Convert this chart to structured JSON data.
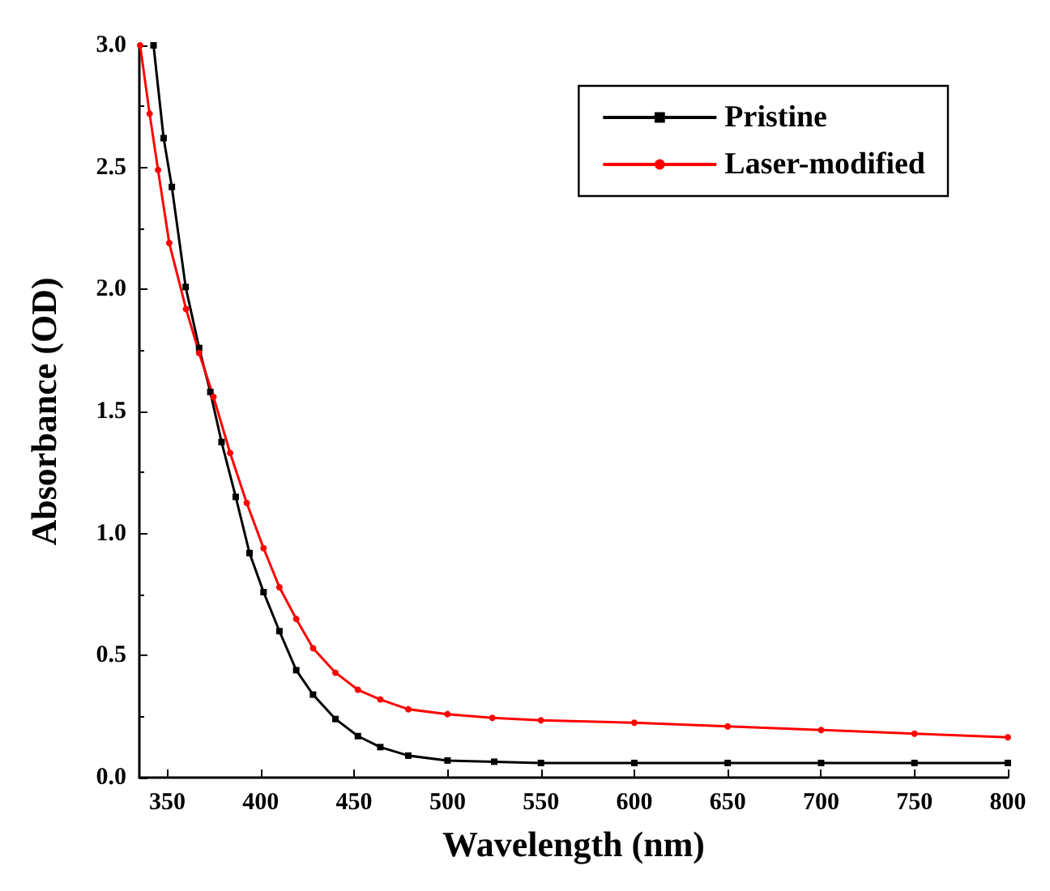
{
  "chart_data": {
    "type": "line",
    "xlabel": "Wavelength (nm)",
    "ylabel": "Absorbance (OD)",
    "xlim": [
      335,
      800
    ],
    "xticks": [
      350,
      400,
      450,
      500,
      550,
      600,
      650,
      700,
      750,
      800
    ],
    "ylim": [
      0,
      3
    ],
    "yticks": [
      {
        "value": 0,
        "label": "0.0"
      },
      0.5,
      {
        "value": 1,
        "label": "1.0"
      },
      1.5,
      {
        "value": 2,
        "label": "2.0"
      },
      2.5,
      {
        "value": 3,
        "label": "3.0"
      }
    ],
    "grid": false,
    "legend": "top right",
    "line_style": "solid",
    "series": [
      {
        "name": "Pristine",
        "color": "#000000",
        "marker": "square",
        "x": [
          342.6,
          348,
          352.4,
          359.8,
          367,
          373,
          379,
          386.6,
          394,
          401.5,
          410,
          419,
          428,
          440,
          452,
          464,
          479,
          500,
          525,
          550,
          600,
          650,
          700,
          750,
          800
        ],
        "values": [
          3.0,
          2.62,
          2.42,
          2.01,
          1.76,
          1.58,
          1.375,
          1.15,
          0.92,
          0.76,
          0.6,
          0.44,
          0.34,
          0.24,
          0.17,
          0.125,
          0.09,
          0.07,
          0.065,
          0.06,
          0.06,
          0.06,
          0.06,
          0.06,
          0.06
        ]
      },
      {
        "name": "Laser-modified",
        "color": "#ff0000",
        "marker": "circle",
        "x": [
          335.4,
          340.5,
          345,
          351,
          360,
          367,
          374.7,
          383.6,
          392.5,
          401.5,
          410,
          419,
          428,
          440,
          452,
          464,
          479,
          500,
          524,
          550,
          600,
          650,
          700,
          750,
          800
        ],
        "values": [
          3.0,
          2.72,
          2.49,
          2.19,
          1.92,
          1.74,
          1.56,
          1.33,
          1.125,
          0.94,
          0.78,
          0.65,
          0.53,
          0.43,
          0.36,
          0.32,
          0.28,
          0.26,
          0.245,
          0.235,
          0.225,
          0.21,
          0.195,
          0.18,
          0.165
        ]
      }
    ]
  }
}
